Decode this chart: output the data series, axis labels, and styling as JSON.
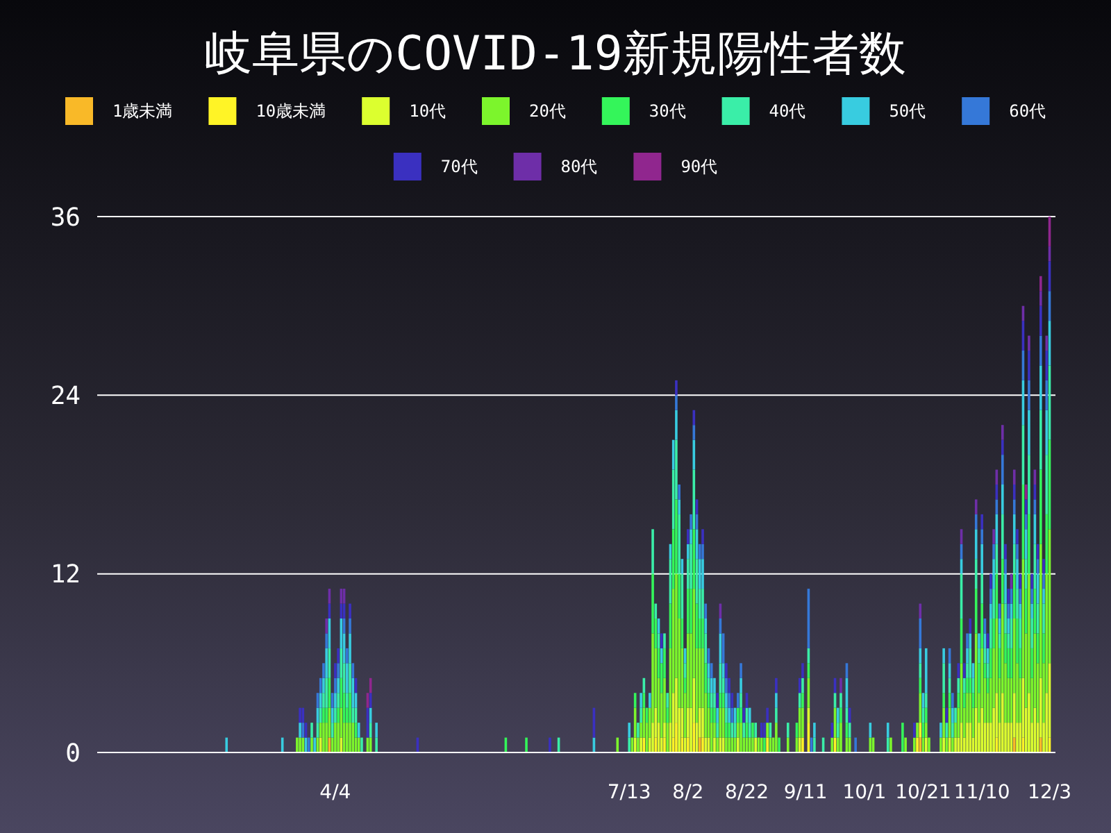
{
  "chart_data": {
    "type": "bar",
    "stacked": true,
    "title": "岐阜県のCOVID-19新規陽性者数",
    "legend": "top",
    "grid": "y",
    "xlim": [
      "--01-14",
      "--12-05"
    ],
    "xticks": [
      {
        "value": "--04-04",
        "label": "4/4"
      },
      {
        "value": "--07-13",
        "label": "7/13"
      },
      {
        "value": "--08-02",
        "label": "8/2"
      },
      {
        "value": "--08-22",
        "label": "8/22"
      },
      {
        "value": "--09-11",
        "label": "9/11"
      },
      {
        "value": "--10-01",
        "label": "10/1"
      },
      {
        "value": "--10-21",
        "label": "10/21"
      },
      {
        "value": "--11-10",
        "label": "11/10"
      },
      {
        "value": "--12-03",
        "label": "12/3"
      }
    ],
    "ylim": [
      0,
      36
    ],
    "yticks": [
      0,
      12,
      24,
      36
    ],
    "x": [
      "--02-27",
      "--03-17",
      "--03-22",
      "--03-23",
      "--03-24",
      "--03-25",
      "--03-26",
      "--03-27",
      "--03-28",
      "--03-29",
      "--03-30",
      "--03-31",
      "--04-01",
      "--04-02",
      "--04-03",
      "--04-04",
      "--04-05",
      "--04-06",
      "--04-07",
      "--04-08",
      "--04-09",
      "--04-10",
      "--04-11",
      "--04-12",
      "--04-13",
      "--04-15",
      "--04-16",
      "--04-18",
      "--05-02",
      "--06-01",
      "--06-08",
      "--06-16",
      "--06-19",
      "--07-01",
      "--07-09",
      "--07-13",
      "--07-14",
      "--07-15",
      "--07-16",
      "--07-17",
      "--07-18",
      "--07-19",
      "--07-20",
      "--07-21",
      "--07-22",
      "--07-23",
      "--07-24",
      "--07-25",
      "--07-26",
      "--07-27",
      "--07-28",
      "--07-29",
      "--07-30",
      "--07-31",
      "--08-01",
      "--08-02",
      "--08-03",
      "--08-04",
      "--08-05",
      "--08-06",
      "--08-07",
      "--08-08",
      "--08-09",
      "--08-10",
      "--08-11",
      "--08-12",
      "--08-13",
      "--08-14",
      "--08-15",
      "--08-16",
      "--08-17",
      "--08-18",
      "--08-19",
      "--08-20",
      "--08-21",
      "--08-22",
      "--08-23",
      "--08-24",
      "--08-25",
      "--08-26",
      "--08-27",
      "--08-28",
      "--08-29",
      "--08-30",
      "--08-31",
      "--09-01",
      "--09-02",
      "--09-05",
      "--09-08",
      "--09-09",
      "--09-10",
      "--09-12",
      "--09-13",
      "--09-14",
      "--09-17",
      "--09-20",
      "--09-21",
      "--09-22",
      "--09-23",
      "--09-25",
      "--09-26",
      "--09-28",
      "--10-03",
      "--10-04",
      "--10-09",
      "--10-10",
      "--10-14",
      "--10-15",
      "--10-18",
      "--10-19",
      "--10-20",
      "--10-21",
      "--10-22",
      "--10-23",
      "--10-27",
      "--10-28",
      "--10-29",
      "--10-30",
      "--10-31",
      "--11-01",
      "--11-02",
      "--11-03",
      "--11-04",
      "--11-05",
      "--11-06",
      "--11-07",
      "--11-08",
      "--11-09",
      "--11-10",
      "--11-11",
      "--11-12",
      "--11-13",
      "--11-14",
      "--11-15",
      "--11-16",
      "--11-17",
      "--11-18",
      "--11-19",
      "--11-20",
      "--11-21",
      "--11-22",
      "--11-23",
      "--11-24",
      "--11-25",
      "--11-26",
      "--11-27",
      "--11-28",
      "--11-29",
      "--11-30",
      "--12-01",
      "--12-02",
      "--12-03"
    ],
    "series": [
      {
        "name": "1歳未満",
        "color": "#f9b928",
        "values": [
          0,
          0,
          0,
          0,
          0,
          0,
          0,
          0,
          0,
          0,
          0,
          0,
          0,
          1,
          0,
          0,
          0,
          0,
          0,
          0,
          0,
          0,
          0,
          0,
          0,
          0,
          0,
          0,
          0,
          0,
          0,
          0,
          0,
          0,
          0,
          0,
          0,
          0,
          0,
          0,
          0,
          0,
          0,
          0,
          0,
          0,
          0,
          0,
          0,
          0,
          0,
          0,
          0,
          0,
          0,
          0,
          0,
          0,
          0,
          1,
          0,
          0,
          0,
          0,
          0,
          0,
          0,
          0,
          0,
          0,
          0,
          0,
          0,
          0,
          0,
          0,
          0,
          0,
          0,
          0,
          0,
          0,
          0,
          0,
          0,
          0,
          0,
          0,
          0,
          0,
          0,
          0,
          0,
          0,
          0,
          0,
          0,
          0,
          0,
          0,
          0,
          0,
          0,
          0,
          0,
          0,
          0,
          0,
          0,
          0,
          1,
          0,
          0,
          0,
          0,
          0,
          0,
          0,
          0,
          0,
          0,
          0,
          0,
          0,
          0,
          0,
          0,
          0,
          0,
          0,
          0,
          0,
          0,
          0,
          0,
          0,
          0,
          0,
          0,
          1,
          0,
          0,
          0,
          0,
          0,
          0,
          0,
          0,
          1,
          0,
          0,
          0
        ]
      },
      {
        "name": "10歳未満",
        "color": "#fff426",
        "values": [
          0,
          0,
          0,
          0,
          0,
          0,
          0,
          0,
          0,
          0,
          0,
          0,
          0,
          0,
          0,
          0,
          0,
          0,
          0,
          0,
          0,
          0,
          0,
          0,
          0,
          0,
          0,
          0,
          0,
          0,
          0,
          0,
          0,
          0,
          0,
          0,
          0,
          0,
          0,
          0,
          1,
          0,
          0,
          0,
          1,
          0,
          0,
          1,
          0,
          0,
          1,
          2,
          0,
          1,
          0,
          1,
          0,
          2,
          0,
          0,
          1,
          0,
          0,
          0,
          0,
          0,
          0,
          0,
          0,
          0,
          0,
          0,
          0,
          0,
          0,
          0,
          0,
          0,
          0,
          0,
          0,
          0,
          1,
          0,
          0,
          0,
          0,
          0,
          0,
          0,
          1,
          2,
          0,
          0,
          0,
          0,
          1,
          0,
          0,
          0,
          0,
          0,
          0,
          0,
          0,
          0,
          0,
          0,
          0,
          1,
          1,
          0,
          0,
          0,
          0,
          0,
          0,
          0,
          0,
          0,
          0,
          0,
          0,
          0,
          0,
          0,
          0,
          0,
          0,
          0,
          0,
          0,
          0,
          1,
          0,
          0,
          0,
          0,
          0,
          0,
          0,
          0,
          1,
          0,
          0,
          0,
          0,
          0,
          0,
          0,
          0,
          1
        ]
      },
      {
        "name": "10代",
        "color": "#dcff2f",
        "values": [
          0,
          0,
          0,
          0,
          0,
          0,
          0,
          0,
          0,
          0,
          1,
          0,
          0,
          0,
          0,
          0,
          0,
          1,
          0,
          0,
          0,
          0,
          0,
          0,
          0,
          0,
          0,
          0,
          0,
          0,
          0,
          0,
          0,
          0,
          0,
          0,
          0,
          1,
          0,
          1,
          0,
          0,
          1,
          2,
          2,
          2,
          1,
          1,
          0,
          2,
          3,
          3,
          3,
          2,
          1,
          2,
          3,
          3,
          2,
          2,
          2,
          1,
          1,
          0,
          1,
          0,
          1,
          1,
          0,
          0,
          0,
          0,
          1,
          0,
          0,
          0,
          0,
          0,
          1,
          0,
          0,
          0,
          0,
          0,
          0,
          0,
          0,
          0,
          0,
          1,
          0,
          1,
          0,
          0,
          0,
          0,
          0,
          0,
          0,
          0,
          0,
          0,
          0,
          0,
          0,
          0,
          0,
          0,
          0,
          0,
          0,
          0,
          1,
          0,
          0,
          1,
          0,
          1,
          0,
          1,
          1,
          2,
          1,
          2,
          2,
          1,
          3,
          2,
          3,
          2,
          2,
          2,
          3,
          3,
          2,
          4,
          2,
          2,
          2,
          3,
          2,
          2,
          4,
          3,
          4,
          2,
          3,
          2,
          4,
          2,
          4,
          5
        ]
      },
      {
        "name": "20代",
        "color": "#7cf52c",
        "values": [
          0,
          0,
          1,
          1,
          1,
          0,
          0,
          1,
          0,
          1,
          1,
          2,
          2,
          2,
          1,
          2,
          2,
          2,
          2,
          2,
          2,
          2,
          1,
          1,
          0,
          1,
          1,
          0,
          0,
          0,
          0,
          0,
          0,
          0,
          1,
          0,
          1,
          2,
          1,
          1,
          2,
          2,
          2,
          6,
          4,
          3,
          3,
          3,
          2,
          5,
          7,
          7,
          6,
          4,
          3,
          5,
          5,
          6,
          5,
          4,
          4,
          3,
          2,
          2,
          1,
          1,
          2,
          2,
          1,
          1,
          1,
          1,
          1,
          2,
          1,
          1,
          1,
          1,
          0,
          1,
          1,
          0,
          1,
          1,
          1,
          2,
          0,
          1,
          1,
          2,
          2,
          2,
          0,
          0,
          0,
          1,
          2,
          1,
          2,
          1,
          1,
          0,
          1,
          1,
          0,
          1,
          0,
          1,
          1,
          1,
          2,
          1,
          1,
          1,
          1,
          2,
          1,
          2,
          1,
          1,
          2,
          4,
          2,
          2,
          2,
          2,
          5,
          2,
          4,
          3,
          2,
          3,
          4,
          5,
          3,
          6,
          4,
          3,
          3,
          5,
          4,
          3,
          8,
          5,
          8,
          3,
          5,
          4,
          9,
          4,
          8,
          9
        ]
      },
      {
        "name": "30代",
        "color": "#34f55a",
        "values": [
          0,
          0,
          0,
          0,
          0,
          0,
          0,
          0,
          0,
          0,
          0,
          1,
          1,
          2,
          0,
          0,
          1,
          2,
          2,
          1,
          2,
          0,
          1,
          0,
          0,
          0,
          0,
          0,
          0,
          1,
          1,
          0,
          0,
          0,
          0,
          0,
          0,
          1,
          0,
          0,
          1,
          1,
          0,
          4,
          2,
          2,
          2,
          2,
          1,
          3,
          4,
          5,
          3,
          2,
          1,
          3,
          3,
          4,
          3,
          2,
          2,
          2,
          1,
          1,
          1,
          0,
          1,
          1,
          1,
          1,
          0,
          0,
          1,
          1,
          0,
          1,
          0,
          1,
          0,
          0,
          0,
          1,
          0,
          0,
          0,
          0,
          1,
          0,
          1,
          0,
          1,
          1,
          0,
          0,
          0,
          0,
          0,
          0,
          1,
          1,
          0,
          0,
          0,
          0,
          0,
          0,
          2,
          0,
          0,
          0,
          1,
          1,
          1,
          0,
          0,
          1,
          0,
          1,
          0,
          0,
          1,
          3,
          1,
          1,
          1,
          1,
          3,
          2,
          3,
          1,
          1,
          2,
          2,
          3,
          2,
          3,
          2,
          2,
          2,
          3,
          3,
          2,
          5,
          3,
          4,
          2,
          3,
          2,
          5,
          2,
          4,
          6
        ]
      },
      {
        "name": "40代",
        "color": "#3aeea8",
        "values": [
          0,
          0,
          0,
          0,
          0,
          0,
          0,
          1,
          0,
          1,
          1,
          1,
          2,
          2,
          1,
          1,
          1,
          2,
          2,
          1,
          2,
          1,
          1,
          0,
          1,
          0,
          1,
          1,
          0,
          0,
          0,
          0,
          1,
          0,
          0,
          1,
          0,
          0,
          1,
          1,
          1,
          0,
          0,
          3,
          1,
          1,
          0,
          1,
          1,
          3,
          4,
          4,
          4,
          3,
          1,
          2,
          3,
          4,
          3,
          2,
          2,
          2,
          1,
          1,
          1,
          1,
          2,
          1,
          1,
          0,
          1,
          1,
          0,
          1,
          1,
          1,
          1,
          0,
          1,
          0,
          0,
          0,
          0,
          1,
          0,
          1,
          0,
          1,
          0,
          1,
          1,
          1,
          0,
          1,
          1,
          0,
          1,
          1,
          1,
          1,
          1,
          0,
          0,
          0,
          1,
          0,
          0,
          0,
          0,
          0,
          1,
          1,
          1,
          0,
          0,
          2,
          1,
          1,
          1,
          1,
          1,
          3,
          1,
          1,
          2,
          1,
          2,
          1,
          2,
          1,
          1,
          2,
          2,
          2,
          1,
          3,
          2,
          1,
          2,
          2,
          2,
          2,
          4,
          2,
          4,
          2,
          3,
          2,
          4,
          2,
          4,
          5
        ]
      },
      {
        "name": "50代",
        "color": "#38cce0",
        "values": [
          1,
          1,
          0,
          1,
          0,
          1,
          0,
          0,
          1,
          1,
          1,
          1,
          2,
          2,
          1,
          1,
          1,
          2,
          2,
          2,
          2,
          2,
          1,
          1,
          0,
          0,
          1,
          1,
          0,
          0,
          0,
          0,
          0,
          1,
          0,
          1,
          0,
          0,
          0,
          1,
          0,
          0,
          1,
          0,
          0,
          1,
          1,
          0,
          0,
          1,
          2,
          2,
          1,
          1,
          1,
          1,
          1,
          2,
          2,
          2,
          2,
          1,
          1,
          1,
          1,
          1,
          2,
          1,
          1,
          1,
          0,
          1,
          0,
          1,
          0,
          0,
          1,
          0,
          0,
          0,
          0,
          0,
          0,
          0,
          0,
          1,
          0,
          0,
          0,
          0,
          0,
          0,
          0,
          1,
          0,
          0,
          0,
          1,
          0,
          2,
          0,
          0,
          1,
          0,
          1,
          0,
          0,
          0,
          0,
          0,
          1,
          1,
          3,
          0,
          1,
          1,
          0,
          1,
          1,
          0,
          0,
          1,
          0,
          1,
          1,
          1,
          2,
          1,
          2,
          1,
          1,
          1,
          2,
          2,
          1,
          2,
          2,
          1,
          1,
          2,
          2,
          1,
          3,
          2,
          3,
          1,
          2,
          2,
          3,
          1,
          3,
          3
        ]
      },
      {
        "name": "60代",
        "color": "#3578d8",
        "values": [
          0,
          0,
          0,
          0,
          1,
          0,
          1,
          0,
          0,
          1,
          1,
          1,
          1,
          0,
          1,
          1,
          1,
          0,
          1,
          1,
          1,
          1,
          0,
          0,
          0,
          0,
          0,
          0,
          0,
          0,
          0,
          0,
          0,
          0,
          0,
          0,
          0,
          0,
          0,
          0,
          0,
          0,
          0,
          0,
          0,
          0,
          0,
          0,
          0,
          0,
          0,
          1,
          1,
          0,
          0,
          0,
          1,
          1,
          1,
          1,
          1,
          1,
          1,
          1,
          0,
          0,
          1,
          2,
          1,
          1,
          1,
          0,
          1,
          1,
          0,
          0,
          0,
          0,
          0,
          0,
          0,
          0,
          0,
          0,
          0,
          0,
          0,
          0,
          0,
          0,
          0,
          4,
          1,
          0,
          0,
          0,
          0,
          0,
          0,
          1,
          0,
          1,
          0,
          0,
          0,
          0,
          0,
          0,
          0,
          0,
          2,
          0,
          0,
          0,
          0,
          0,
          0,
          1,
          1,
          0,
          0,
          1,
          0,
          1,
          0,
          0,
          1,
          0,
          1,
          1,
          0,
          1,
          1,
          1,
          1,
          2,
          1,
          1,
          1,
          1,
          1,
          1,
          2,
          1,
          2,
          1,
          1,
          1,
          2,
          1,
          2,
          2
        ]
      },
      {
        "name": "70代",
        "color": "#3a30c0",
        "values": [
          0,
          0,
          0,
          1,
          1,
          1,
          0,
          0,
          0,
          0,
          0,
          0,
          0,
          1,
          0,
          1,
          1,
          1,
          1,
          0,
          1,
          0,
          1,
          0,
          0,
          2,
          1,
          0,
          1,
          0,
          0,
          1,
          0,
          2,
          0,
          0,
          0,
          0,
          0,
          0,
          0,
          0,
          0,
          0,
          0,
          0,
          1,
          0,
          0,
          0,
          0,
          1,
          0,
          0,
          0,
          1,
          0,
          1,
          1,
          0,
          1,
          0,
          0,
          0,
          0,
          1,
          0,
          0,
          1,
          1,
          1,
          0,
          0,
          0,
          1,
          1,
          0,
          0,
          0,
          0,
          1,
          1,
          1,
          0,
          0,
          1,
          0,
          0,
          0,
          1,
          1,
          0,
          0,
          0,
          0,
          1,
          1,
          0,
          0,
          0,
          1,
          0,
          0,
          0,
          0,
          0,
          0,
          0,
          1,
          0,
          0,
          0,
          0,
          0,
          0,
          0,
          1,
          0,
          0,
          0,
          1,
          0,
          1,
          0,
          1,
          0,
          0,
          0,
          1,
          0,
          1,
          1,
          0,
          1,
          0,
          1,
          1,
          1,
          0,
          1,
          1,
          1,
          2,
          1,
          2,
          1,
          1,
          1,
          2,
          1,
          2,
          2
        ]
      },
      {
        "name": "80代",
        "color": "#6e2ea8",
        "values": [
          0,
          0,
          0,
          0,
          0,
          0,
          0,
          0,
          0,
          0,
          0,
          0,
          1,
          1,
          0,
          0,
          0,
          1,
          1,
          0,
          0,
          0,
          0,
          0,
          0,
          0,
          0,
          0,
          0,
          0,
          0,
          0,
          0,
          0,
          0,
          0,
          0,
          0,
          0,
          0,
          0,
          0,
          0,
          0,
          0,
          0,
          0,
          0,
          0,
          0,
          0,
          0,
          0,
          0,
          0,
          0,
          0,
          0,
          0,
          0,
          0,
          0,
          0,
          0,
          0,
          0,
          1,
          0,
          0,
          0,
          0,
          0,
          0,
          0,
          0,
          0,
          0,
          0,
          0,
          0,
          0,
          0,
          0,
          0,
          0,
          0,
          0,
          0,
          0,
          0,
          0,
          0,
          0,
          0,
          0,
          0,
          0,
          0,
          1,
          0,
          0,
          0,
          0,
          0,
          0,
          0,
          0,
          0,
          0,
          0,
          1,
          0,
          0,
          0,
          0,
          0,
          0,
          0,
          0,
          0,
          0,
          1,
          0,
          0,
          0,
          0,
          1,
          0,
          0,
          0,
          0,
          0,
          1,
          1,
          0,
          1,
          0,
          0,
          1,
          1,
          0,
          0,
          1,
          0,
          1,
          0,
          1,
          0,
          1,
          0,
          1,
          1
        ]
      },
      {
        "name": "90代",
        "color": "#90268e",
        "values": [
          0,
          0,
          0,
          0,
          0,
          0,
          0,
          0,
          0,
          0,
          0,
          0,
          0,
          0,
          0,
          0,
          0,
          0,
          0,
          0,
          0,
          0,
          0,
          0,
          0,
          1,
          1,
          0,
          0,
          0,
          0,
          0,
          0,
          0,
          0,
          0,
          0,
          0,
          0,
          0,
          0,
          0,
          0,
          0,
          0,
          0,
          0,
          0,
          0,
          0,
          0,
          0,
          0,
          0,
          0,
          0,
          0,
          0,
          0,
          0,
          0,
          0,
          0,
          0,
          0,
          0,
          0,
          0,
          0,
          0,
          0,
          0,
          0,
          0,
          0,
          0,
          0,
          0,
          0,
          0,
          0,
          0,
          0,
          0,
          0,
          0,
          0,
          0,
          0,
          0,
          0,
          0,
          0,
          0,
          0,
          0,
          0,
          0,
          0,
          0,
          0,
          0,
          0,
          0,
          0,
          0,
          0,
          0,
          0,
          0,
          0,
          0,
          0,
          0,
          0,
          0,
          0,
          0,
          0,
          0,
          0,
          0,
          0,
          0,
          0,
          0,
          0,
          0,
          0,
          0,
          0,
          0,
          0,
          0,
          0,
          0,
          0,
          0,
          0,
          0,
          0,
          0,
          0,
          1,
          0,
          0,
          0,
          0,
          1,
          0,
          0,
          2
        ]
      }
    ]
  }
}
